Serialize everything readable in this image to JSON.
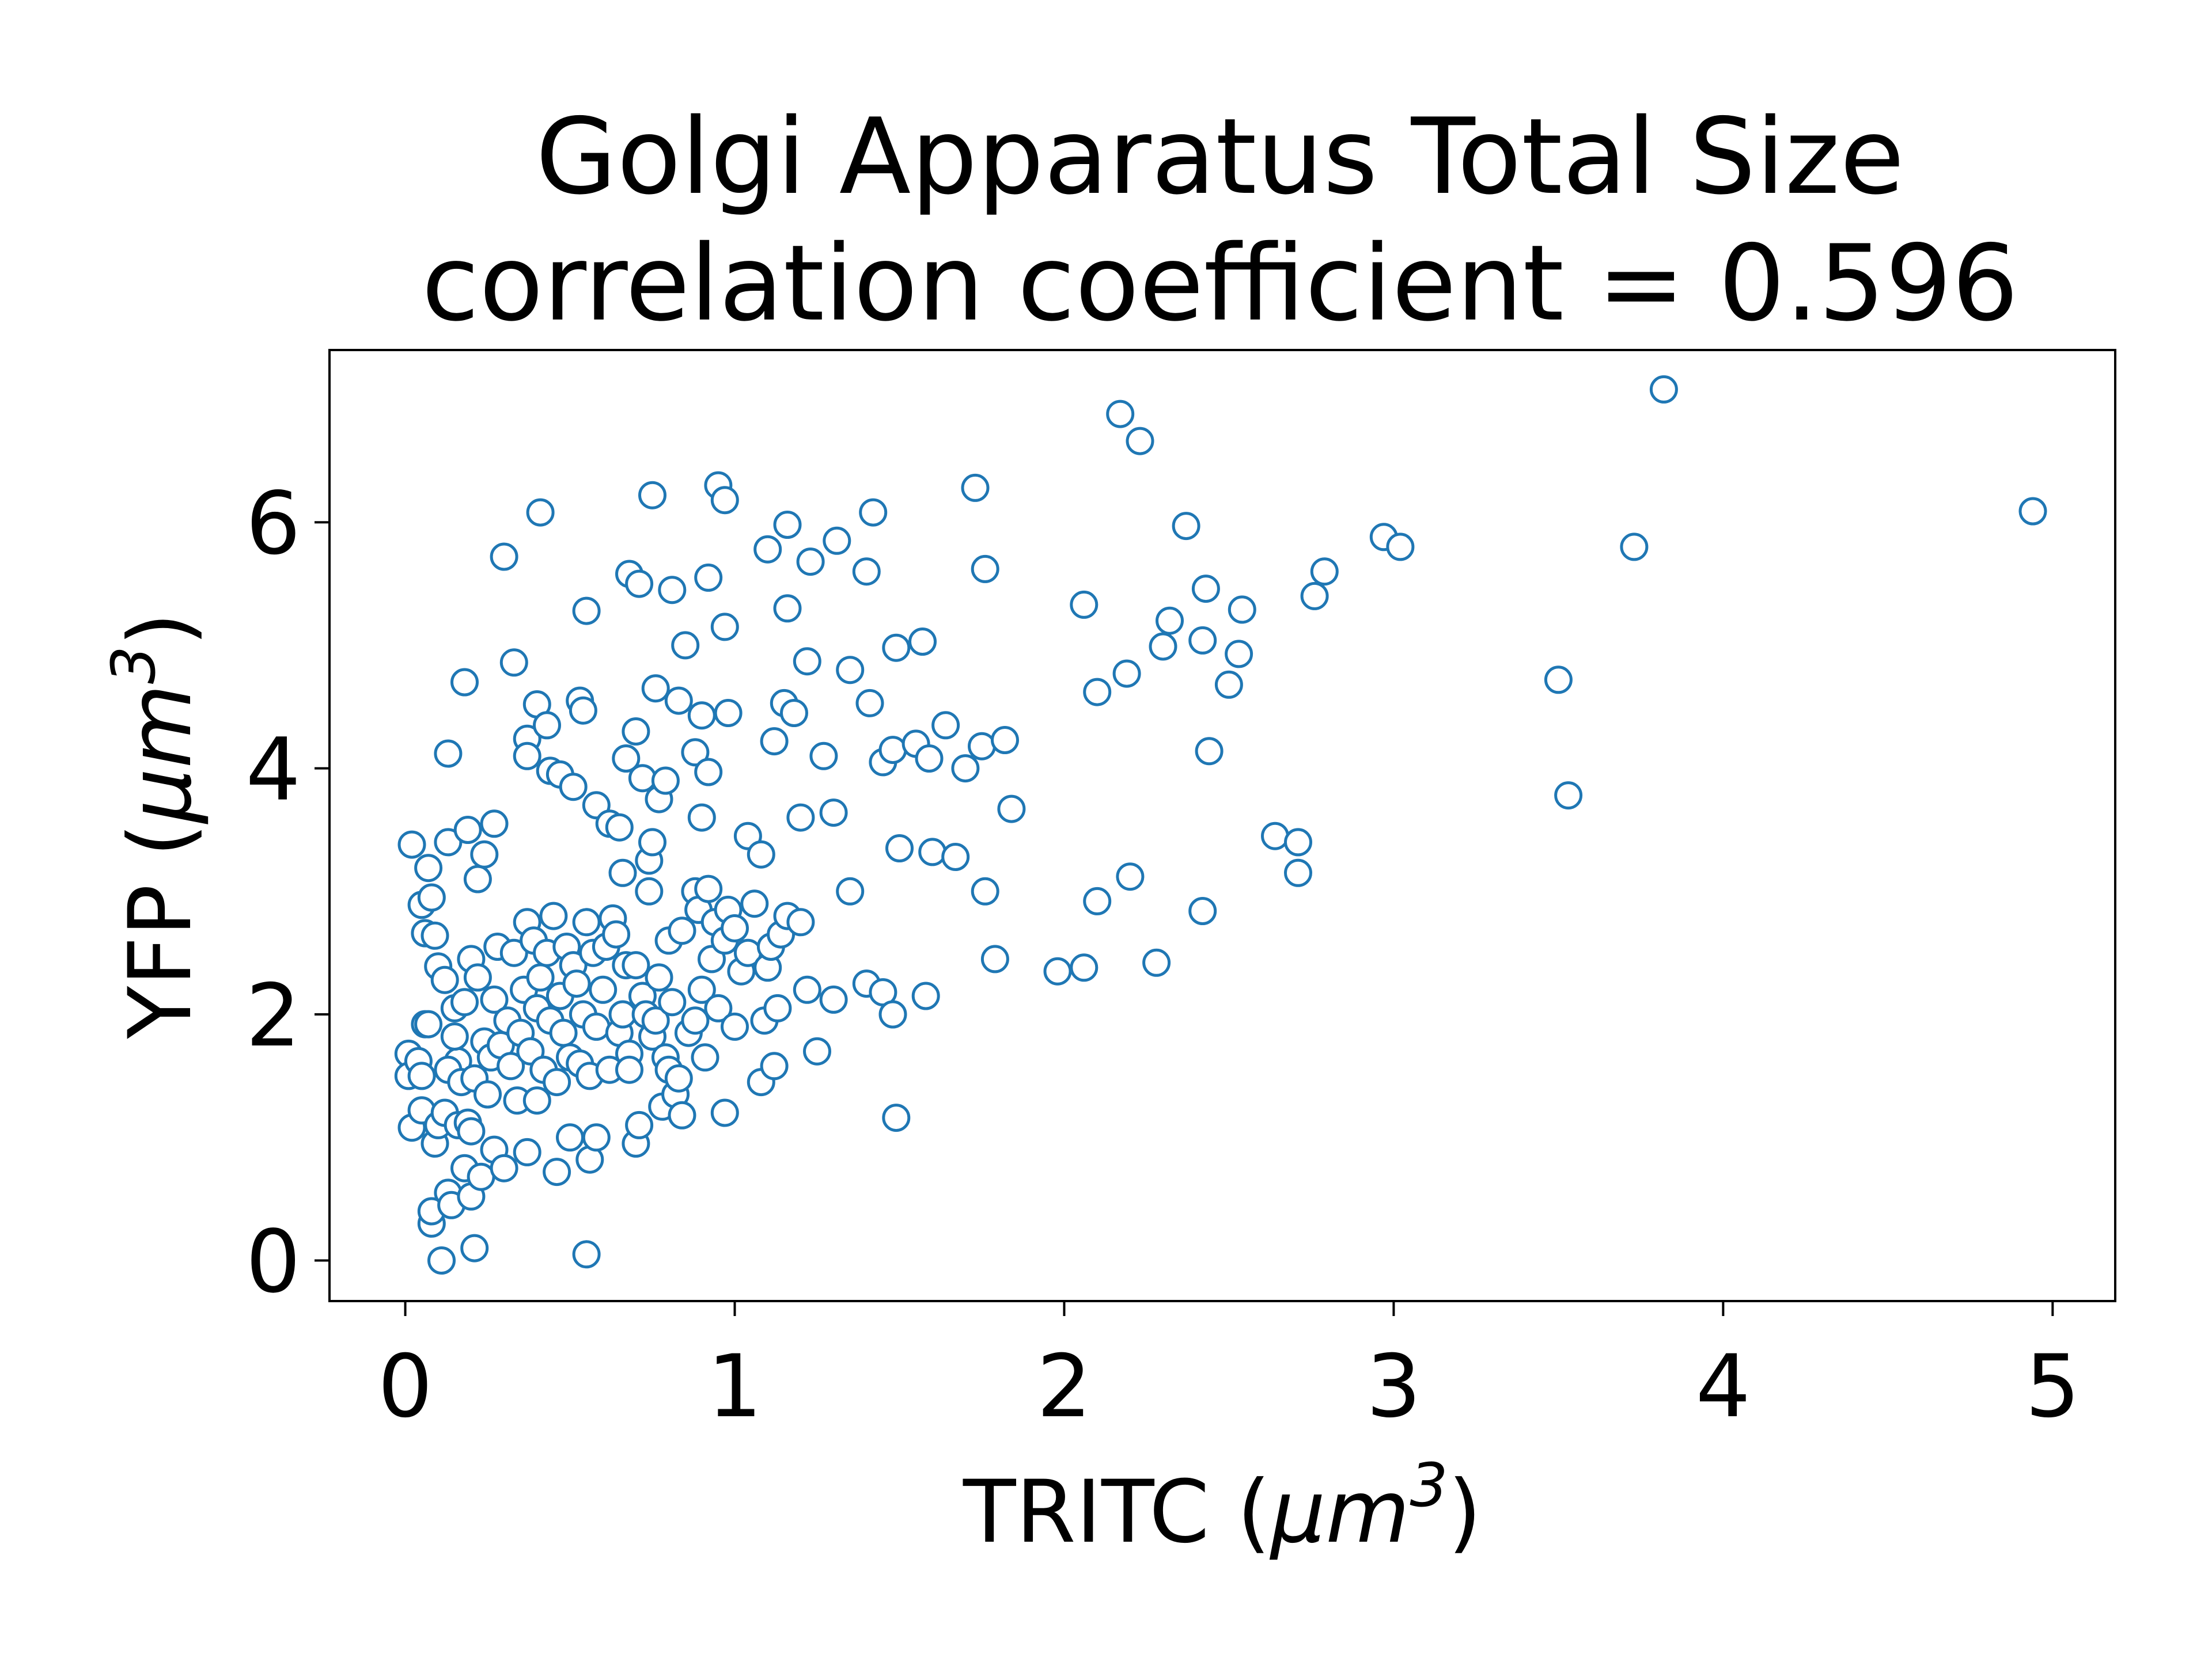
{
  "chart_data": {
    "type": "scatter",
    "title": "Golgi Apparatus Total Size",
    "subtitle": "correlation coefficient = 0.596",
    "xlabel": "TRITC",
    "xlabel_unit_base": "μm",
    "xlabel_unit_exp": "3",
    "ylabel": "YFP",
    "ylabel_unit_base": "μm",
    "ylabel_unit_exp": "3",
    "xlim": [
      -0.23,
      5.19
    ],
    "ylim": [
      -0.33,
      7.4
    ],
    "xticks": [
      0,
      1,
      2,
      3,
      4,
      5
    ],
    "yticks": [
      0,
      2,
      4,
      6
    ],
    "grid": false,
    "marker_color": "#1f77b4",
    "marker_face": "#ffffff",
    "series": [
      {
        "points": [
          [
            0.02,
            3.38
          ],
          [
            0.05,
            2.89
          ],
          [
            0.06,
            2.66
          ],
          [
            0.07,
            3.19
          ],
          [
            0.08,
            2.95
          ],
          [
            0.09,
            2.64
          ],
          [
            0.1,
            2.39
          ],
          [
            0.12,
            2.28
          ],
          [
            0.13,
            4.12
          ],
          [
            0.13,
            3.4
          ],
          [
            0.15,
            2.05
          ],
          [
            0.16,
            1.62
          ],
          [
            0.18,
            4.7
          ],
          [
            0.19,
            3.5
          ],
          [
            0.2,
            2.45
          ],
          [
            0.22,
            3.1
          ],
          [
            0.24,
            3.3
          ],
          [
            0.27,
            3.55
          ],
          [
            0.3,
            5.72
          ],
          [
            0.33,
            4.86
          ],
          [
            0.37,
            4.24
          ],
          [
            0.37,
            4.1
          ],
          [
            0.4,
            4.52
          ],
          [
            0.41,
            6.08
          ],
          [
            0.43,
            4.35
          ],
          [
            0.44,
            3.98
          ],
          [
            0.47,
            3.95
          ],
          [
            0.51,
            3.85
          ],
          [
            0.53,
            4.55
          ],
          [
            0.54,
            4.47
          ],
          [
            0.55,
            5.28
          ],
          [
            0.58,
            3.7
          ],
          [
            0.62,
            3.55
          ],
          [
            0.65,
            3.52
          ],
          [
            0.66,
            3.15
          ],
          [
            0.67,
            4.08
          ],
          [
            0.68,
            5.58
          ],
          [
            0.7,
            4.3
          ],
          [
            0.71,
            5.5
          ],
          [
            0.72,
            3.92
          ],
          [
            0.74,
            3.25
          ],
          [
            0.75,
            3.4
          ],
          [
            0.75,
            6.22
          ],
          [
            0.76,
            4.65
          ],
          [
            0.77,
            3.75
          ],
          [
            0.79,
            3.9
          ],
          [
            0.81,
            5.45
          ],
          [
            0.83,
            4.55
          ],
          [
            0.85,
            5.0
          ],
          [
            0.88,
            4.13
          ],
          [
            0.9,
            4.43
          ],
          [
            0.9,
            3.6
          ],
          [
            0.92,
            5.55
          ],
          [
            0.92,
            3.97
          ],
          [
            0.95,
            6.3
          ],
          [
            0.97,
            6.18
          ],
          [
            0.97,
            5.15
          ],
          [
            0.98,
            4.45
          ],
          [
            1.04,
            3.45
          ],
          [
            1.08,
            3.3
          ],
          [
            1.1,
            5.78
          ],
          [
            1.12,
            4.22
          ],
          [
            1.15,
            4.53
          ],
          [
            1.16,
            5.3
          ],
          [
            1.16,
            5.98
          ],
          [
            1.18,
            4.45
          ],
          [
            1.2,
            3.6
          ],
          [
            1.22,
            4.87
          ],
          [
            1.23,
            5.68
          ],
          [
            1.27,
            4.1
          ],
          [
            1.3,
            3.64
          ],
          [
            1.31,
            5.85
          ],
          [
            1.35,
            4.8
          ],
          [
            1.4,
            5.6
          ],
          [
            1.41,
            4.53
          ],
          [
            1.42,
            6.08
          ],
          [
            1.45,
            4.05
          ],
          [
            1.48,
            4.15
          ],
          [
            1.49,
            4.98
          ],
          [
            1.5,
            3.35
          ],
          [
            1.55,
            4.2
          ],
          [
            1.57,
            5.03
          ],
          [
            1.59,
            4.08
          ],
          [
            1.6,
            3.32
          ],
          [
            1.64,
            4.35
          ],
          [
            1.67,
            3.28
          ],
          [
            1.7,
            4.0
          ],
          [
            1.73,
            6.28
          ],
          [
            1.75,
            4.18
          ],
          [
            1.76,
            5.62
          ],
          [
            1.76,
            3.0
          ],
          [
            1.82,
            4.23
          ],
          [
            1.84,
            3.67
          ],
          [
            1.79,
            2.45
          ],
          [
            1.98,
            2.35
          ],
          [
            2.06,
            2.38
          ],
          [
            2.06,
            5.33
          ],
          [
            2.1,
            4.62
          ],
          [
            2.1,
            2.92
          ],
          [
            2.17,
            6.88
          ],
          [
            2.19,
            4.77
          ],
          [
            2.2,
            3.12
          ],
          [
            2.23,
            6.66
          ],
          [
            2.28,
            2.42
          ],
          [
            2.3,
            4.99
          ],
          [
            2.32,
            5.2
          ],
          [
            2.37,
            5.97
          ],
          [
            2.42,
            5.04
          ],
          [
            2.42,
            2.84
          ],
          [
            2.43,
            5.46
          ],
          [
            2.44,
            4.14
          ],
          [
            2.5,
            4.68
          ],
          [
            2.53,
            4.93
          ],
          [
            2.54,
            5.29
          ],
          [
            2.64,
            3.45
          ],
          [
            2.71,
            3.4
          ],
          [
            2.71,
            3.15
          ],
          [
            2.76,
            5.4
          ],
          [
            2.79,
            5.6
          ],
          [
            2.97,
            5.88
          ],
          [
            3.02,
            5.8
          ],
          [
            3.5,
            4.72
          ],
          [
            3.53,
            3.78
          ],
          [
            3.73,
            5.8
          ],
          [
            3.82,
            7.08
          ],
          [
            4.94,
            6.09
          ],
          [
            0.01,
            1.68
          ],
          [
            0.01,
            1.5
          ],
          [
            0.02,
            1.08
          ],
          [
            0.04,
            1.62
          ],
          [
            0.05,
            1.22
          ],
          [
            0.05,
            1.5
          ],
          [
            0.06,
            1.92
          ],
          [
            0.07,
            1.92
          ],
          [
            0.08,
            0.3
          ],
          [
            0.08,
            0.4
          ],
          [
            0.09,
            0.95
          ],
          [
            0.1,
            1.1
          ],
          [
            0.11,
            0.0
          ],
          [
            0.12,
            1.2
          ],
          [
            0.13,
            1.55
          ],
          [
            0.13,
            0.55
          ],
          [
            0.14,
            0.45
          ],
          [
            0.15,
            1.82
          ],
          [
            0.16,
            1.1
          ],
          [
            0.17,
            1.45
          ],
          [
            0.18,
            2.1
          ],
          [
            0.18,
            0.75
          ],
          [
            0.19,
            1.12
          ],
          [
            0.2,
            1.05
          ],
          [
            0.2,
            0.52
          ],
          [
            0.21,
            0.1
          ],
          [
            0.21,
            1.48
          ],
          [
            0.22,
            2.3
          ],
          [
            0.23,
            0.68
          ],
          [
            0.24,
            1.78
          ],
          [
            0.25,
            1.35
          ],
          [
            0.26,
            1.65
          ],
          [
            0.27,
            2.12
          ],
          [
            0.27,
            0.9
          ],
          [
            0.28,
            2.55
          ],
          [
            0.29,
            1.75
          ],
          [
            0.3,
            0.75
          ],
          [
            0.31,
            1.95
          ],
          [
            0.32,
            1.58
          ],
          [
            0.33,
            2.5
          ],
          [
            0.34,
            1.3
          ],
          [
            0.35,
            1.85
          ],
          [
            0.36,
            2.2
          ],
          [
            0.37,
            2.75
          ],
          [
            0.37,
            0.88
          ],
          [
            0.38,
            1.7
          ],
          [
            0.39,
            2.6
          ],
          [
            0.4,
            1.3
          ],
          [
            0.4,
            2.05
          ],
          [
            0.41,
            2.3
          ],
          [
            0.42,
            1.55
          ],
          [
            0.43,
            2.5
          ],
          [
            0.44,
            1.95
          ],
          [
            0.45,
            2.8
          ],
          [
            0.46,
            0.72
          ],
          [
            0.46,
            1.45
          ],
          [
            0.47,
            2.15
          ],
          [
            0.48,
            1.85
          ],
          [
            0.49,
            2.55
          ],
          [
            0.5,
            1.0
          ],
          [
            0.5,
            1.65
          ],
          [
            0.51,
            2.4
          ],
          [
            0.52,
            2.25
          ],
          [
            0.53,
            1.6
          ],
          [
            0.54,
            2.0
          ],
          [
            0.55,
            2.75
          ],
          [
            0.55,
            0.05
          ],
          [
            0.56,
            1.5
          ],
          [
            0.56,
            0.82
          ],
          [
            0.57,
            2.5
          ],
          [
            0.58,
            1.0
          ],
          [
            0.58,
            1.9
          ],
          [
            0.6,
            2.2
          ],
          [
            0.61,
            2.55
          ],
          [
            0.62,
            1.55
          ],
          [
            0.63,
            2.78
          ],
          [
            0.64,
            2.65
          ],
          [
            0.65,
            1.85
          ],
          [
            0.66,
            2.0
          ],
          [
            0.67,
            2.4
          ],
          [
            0.68,
            1.68
          ],
          [
            0.68,
            1.55
          ],
          [
            0.7,
            0.95
          ],
          [
            0.7,
            2.4
          ],
          [
            0.71,
            1.1
          ],
          [
            0.72,
            2.15
          ],
          [
            0.73,
            2.0
          ],
          [
            0.74,
            3.0
          ],
          [
            0.75,
            1.82
          ],
          [
            0.76,
            1.95
          ],
          [
            0.77,
            2.3
          ],
          [
            0.78,
            1.25
          ],
          [
            0.79,
            1.65
          ],
          [
            0.8,
            2.6
          ],
          [
            0.8,
            1.55
          ],
          [
            0.81,
            2.1
          ],
          [
            0.82,
            1.35
          ],
          [
            0.83,
            1.48
          ],
          [
            0.84,
            2.68
          ],
          [
            0.84,
            1.18
          ],
          [
            0.86,
            1.85
          ],
          [
            0.88,
            1.95
          ],
          [
            0.88,
            3.0
          ],
          [
            0.89,
            2.85
          ],
          [
            0.9,
            2.2
          ],
          [
            0.91,
            1.65
          ],
          [
            0.92,
            3.02
          ],
          [
            0.93,
            2.45
          ],
          [
            0.94,
            2.75
          ],
          [
            0.95,
            2.05
          ],
          [
            0.97,
            1.2
          ],
          [
            0.97,
            2.6
          ],
          [
            0.98,
            2.85
          ],
          [
            1.0,
            1.9
          ],
          [
            1.0,
            2.7
          ],
          [
            1.02,
            2.35
          ],
          [
            1.04,
            2.5
          ],
          [
            1.06,
            2.9
          ],
          [
            1.08,
            1.45
          ],
          [
            1.09,
            1.95
          ],
          [
            1.1,
            2.38
          ],
          [
            1.11,
            2.55
          ],
          [
            1.12,
            1.58
          ],
          [
            1.13,
            2.05
          ],
          [
            1.14,
            2.65
          ],
          [
            1.16,
            2.8
          ],
          [
            1.2,
            2.75
          ],
          [
            1.22,
            2.2
          ],
          [
            1.25,
            1.7
          ],
          [
            1.3,
            2.12
          ],
          [
            1.35,
            3.0
          ],
          [
            1.4,
            2.25
          ],
          [
            1.45,
            2.18
          ],
          [
            1.48,
            2.0
          ],
          [
            1.49,
            1.16
          ],
          [
            1.58,
            2.15
          ]
        ]
      }
    ]
  }
}
